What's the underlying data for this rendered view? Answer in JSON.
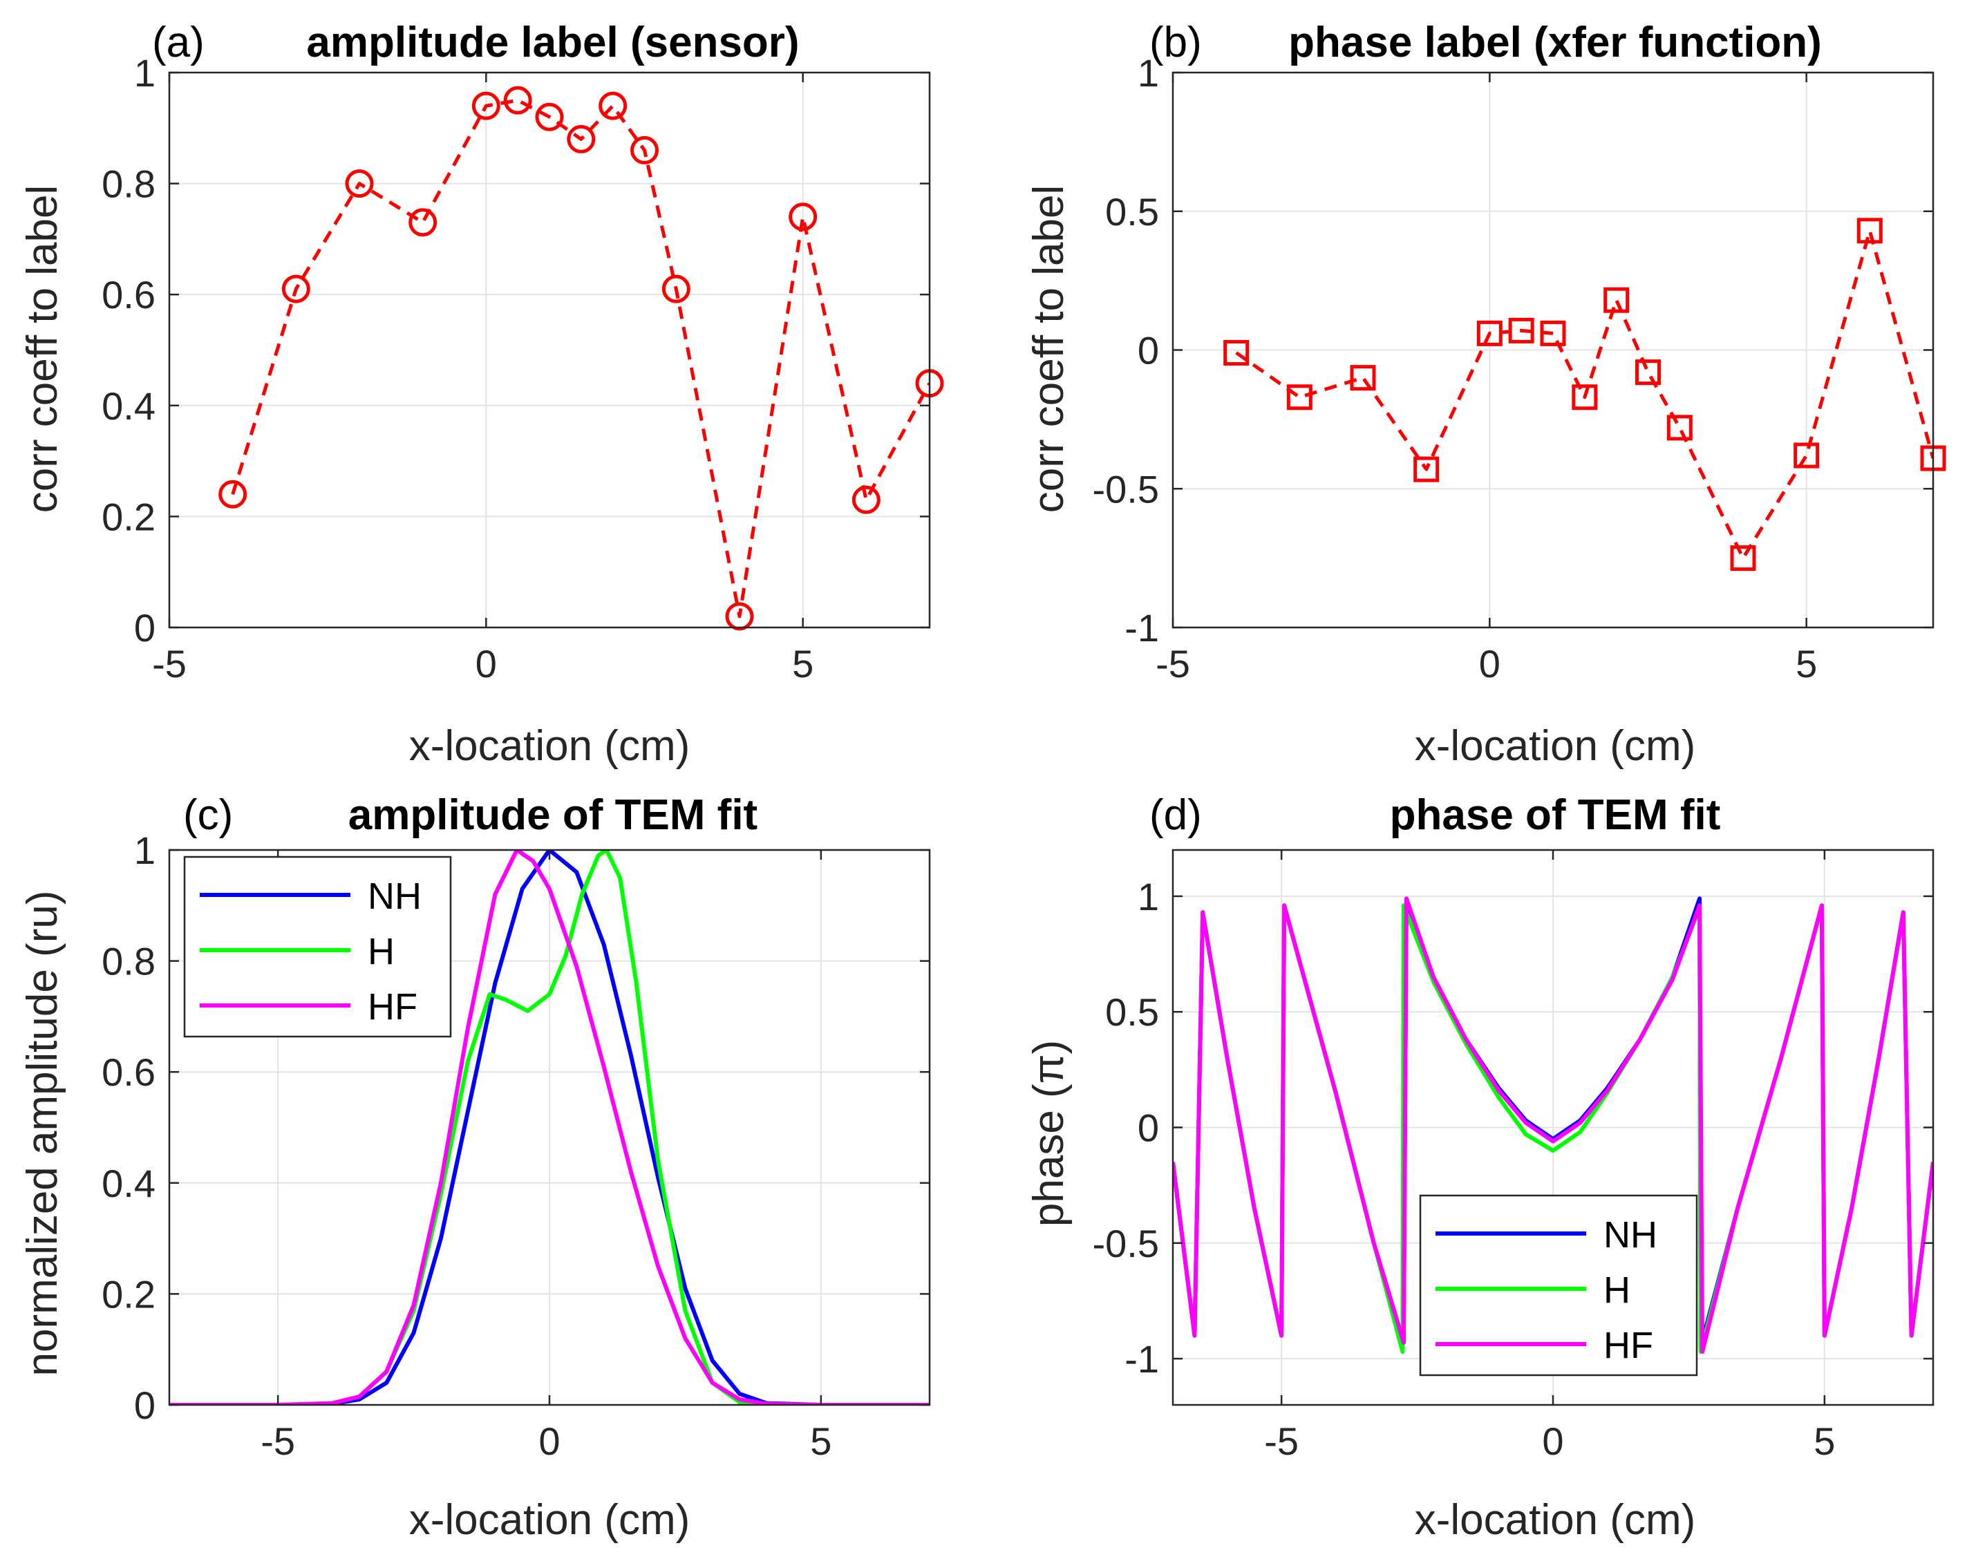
{
  "colors": {
    "markers": "#ff0000",
    "NH": "#0000ff",
    "H": "#00ff00",
    "HF": "#ff00ff",
    "grid": "#e3e3e3",
    "axes": "#262626"
  },
  "chart_data": [
    {
      "id": "a",
      "type": "line",
      "panel_tag": "(a)",
      "title": "amplitude label (sensor)",
      "xlabel": "x-location (cm)",
      "ylabel": "corr coeff to label",
      "xlim": [
        -5,
        7
      ],
      "ylim": [
        0,
        1
      ],
      "xticks": [
        -5,
        0,
        5
      ],
      "yticks": [
        0,
        0.2,
        0.4,
        0.6,
        0.8,
        1
      ],
      "xtick_labels": [
        "-5",
        "0",
        "5"
      ],
      "ytick_labels": [
        "0",
        "0.2",
        "0.4",
        "0.6",
        "0.8",
        "1"
      ],
      "grid": true,
      "series": [
        {
          "marker": "circle",
          "line_style": "dashed",
          "color": "#ff0000",
          "x": [
            -4,
            -3,
            -2,
            -1,
            0,
            0.5,
            1,
            1.5,
            2,
            2.5,
            3,
            4,
            5,
            6,
            7
          ],
          "y": [
            0.24,
            0.61,
            0.8,
            0.73,
            0.94,
            0.95,
            0.92,
            0.88,
            0.94,
            0.86,
            0.61,
            0.02,
            0.74,
            0.23,
            0.44
          ]
        }
      ]
    },
    {
      "id": "b",
      "type": "line",
      "panel_tag": "(b)",
      "title": "phase label (xfer function)",
      "xlabel": "x-location (cm)",
      "ylabel": "corr coeff to label",
      "xlim": [
        -5,
        7
      ],
      "ylim": [
        -1,
        1
      ],
      "xticks": [
        -5,
        0,
        5
      ],
      "yticks": [
        -1,
        -0.5,
        0,
        0.5,
        1
      ],
      "xtick_labels": [
        "-5",
        "0",
        "5"
      ],
      "ytick_labels": [
        "-1",
        "-0.5",
        "0",
        "0.5",
        "1"
      ],
      "grid": true,
      "series": [
        {
          "marker": "square",
          "line_style": "dashed",
          "color": "#ff0000",
          "x": [
            -4,
            -3,
            -2,
            -1,
            0,
            0.5,
            1,
            1.5,
            2,
            2.5,
            3,
            4,
            5,
            6,
            7
          ],
          "y": [
            -0.01,
            -0.17,
            -0.1,
            -0.43,
            0.06,
            0.07,
            0.06,
            -0.17,
            0.18,
            -0.08,
            -0.28,
            -0.75,
            -0.38,
            0.43,
            -0.39
          ]
        }
      ]
    },
    {
      "id": "c",
      "type": "line",
      "panel_tag": "(c)",
      "title": "amplitude of TEM fit",
      "xlabel": "x-location (cm)",
      "ylabel": "normalized amplitude (ru)",
      "xlim": [
        -7,
        7
      ],
      "ylim": [
        0,
        1
      ],
      "xticks": [
        -5,
        0,
        5
      ],
      "yticks": [
        0,
        0.2,
        0.4,
        0.6,
        0.8,
        1
      ],
      "xtick_labels": [
        "-5",
        "0",
        "5"
      ],
      "ytick_labels": [
        "0",
        "0.2",
        "0.4",
        "0.6",
        "0.8",
        "1"
      ],
      "grid": true,
      "legend": "top-left",
      "series": [
        {
          "name": "NH",
          "color": "#0000ff",
          "x": [
            -7,
            -5,
            -4,
            -3.5,
            -3,
            -2.5,
            -2,
            -1.5,
            -1,
            -0.5,
            0,
            0.5,
            1,
            1.5,
            2,
            2.5,
            3,
            3.5,
            4,
            5,
            7
          ],
          "y": [
            0,
            0,
            0.002,
            0.01,
            0.04,
            0.13,
            0.3,
            0.53,
            0.76,
            0.93,
            1.0,
            0.96,
            0.83,
            0.63,
            0.41,
            0.21,
            0.08,
            0.02,
            0.003,
            0,
            0
          ]
        },
        {
          "name": "H",
          "color": "#00ff00",
          "x": [
            -7,
            -5,
            -4,
            -3.5,
            -3,
            -2.5,
            -2,
            -1.5,
            -1.1,
            -0.8,
            -0.4,
            0,
            0.3,
            0.6,
            0.9,
            1.05,
            1.3,
            1.6,
            2,
            2.5,
            3,
            3.5,
            4,
            5,
            7
          ],
          "y": [
            0,
            0,
            0.003,
            0.015,
            0.06,
            0.17,
            0.38,
            0.62,
            0.74,
            0.73,
            0.71,
            0.74,
            0.81,
            0.92,
            0.99,
            1.0,
            0.95,
            0.76,
            0.44,
            0.17,
            0.04,
            0.005,
            0.001,
            0,
            0
          ]
        },
        {
          "name": "HF",
          "color": "#ff00ff",
          "x": [
            -7,
            -5,
            -4,
            -3.5,
            -3,
            -2.5,
            -2,
            -1.5,
            -1,
            -0.6,
            -0.3,
            0,
            0.5,
            1,
            1.5,
            2,
            2.5,
            3,
            3.5,
            4,
            5,
            7
          ],
          "y": [
            0,
            0,
            0.003,
            0.015,
            0.06,
            0.18,
            0.4,
            0.68,
            0.92,
            1.0,
            0.98,
            0.93,
            0.79,
            0.61,
            0.42,
            0.25,
            0.12,
            0.04,
            0.01,
            0.002,
            0,
            0
          ]
        }
      ]
    },
    {
      "id": "d",
      "type": "line",
      "panel_tag": "(d)",
      "title": "phase of TEM fit",
      "xlabel": "x-location (cm)",
      "ylabel": "phase (π)",
      "xlim": [
        -7,
        7
      ],
      "ylim": [
        -1.2,
        1.2
      ],
      "xticks": [
        -5,
        0,
        5
      ],
      "yticks": [
        -1,
        -0.5,
        0,
        0.5,
        1
      ],
      "xtick_labels": [
        "-5",
        "0",
        "5"
      ],
      "ytick_labels": [
        "-1",
        "-0.5",
        "0",
        "0.5",
        "1"
      ],
      "grid": true,
      "legend": "bottom-center",
      "series": [
        {
          "name": "NH",
          "color": "#0000ff",
          "x": [
            -7,
            -6.6,
            -6.45,
            -6.0,
            -5.5,
            -5.0,
            -4.95,
            -4.0,
            -3.3,
            -2.75,
            -2.7,
            -2.2,
            -1.6,
            -1.0,
            -0.5,
            0,
            0.5,
            1.0,
            1.6,
            2.2,
            2.7,
            2.72,
            3.4,
            4.2,
            4.95,
            5.0,
            5.5,
            6.0,
            6.45,
            6.6,
            7
          ],
          "y": [
            -0.15,
            -0.9,
            0.93,
            0.3,
            -0.35,
            -0.9,
            0.96,
            0.15,
            -0.5,
            -0.93,
            0.98,
            0.65,
            0.38,
            0.17,
            0.03,
            -0.05,
            0.03,
            0.17,
            0.38,
            0.65,
            0.99,
            -0.95,
            -0.35,
            0.3,
            0.96,
            -0.9,
            -0.35,
            0.3,
            0.93,
            -0.9,
            -0.15
          ]
        },
        {
          "name": "H",
          "color": "#00ff00",
          "x": [
            -7,
            -6.6,
            -6.45,
            -6.0,
            -5.5,
            -5.0,
            -4.95,
            -4.0,
            -3.3,
            -2.77,
            -2.75,
            -2.2,
            -1.6,
            -1.0,
            -0.5,
            0,
            0.5,
            1.0,
            1.6,
            2.2,
            2.7,
            2.72,
            3.4,
            4.2,
            4.95,
            5.0,
            5.5,
            6.0,
            6.45,
            6.6,
            7
          ],
          "y": [
            -0.15,
            -0.9,
            0.93,
            0.3,
            -0.35,
            -0.9,
            0.96,
            0.15,
            -0.5,
            -0.97,
            0.96,
            0.63,
            0.36,
            0.13,
            -0.03,
            -0.1,
            -0.02,
            0.15,
            0.38,
            0.65,
            0.95,
            -0.97,
            -0.35,
            0.3,
            0.96,
            -0.9,
            -0.35,
            0.3,
            0.93,
            -0.9,
            -0.15
          ]
        },
        {
          "name": "HF",
          "color": "#ff00ff",
          "x": [
            -7,
            -6.6,
            -6.45,
            -6.0,
            -5.5,
            -5.0,
            -4.95,
            -4.0,
            -3.3,
            -2.75,
            -2.7,
            -2.2,
            -1.6,
            -1.0,
            -0.5,
            0,
            0.5,
            1.0,
            1.6,
            2.2,
            2.7,
            2.75,
            3.4,
            4.2,
            4.95,
            5.0,
            5.5,
            6.0,
            6.45,
            6.6,
            7
          ],
          "y": [
            -0.15,
            -0.9,
            0.93,
            0.3,
            -0.35,
            -0.9,
            0.96,
            0.15,
            -0.5,
            -0.93,
            0.99,
            0.65,
            0.38,
            0.16,
            0.02,
            -0.06,
            0.02,
            0.16,
            0.38,
            0.64,
            0.96,
            -0.97,
            -0.35,
            0.3,
            0.96,
            -0.9,
            -0.35,
            0.3,
            0.93,
            -0.9,
            -0.15
          ]
        }
      ]
    }
  ]
}
